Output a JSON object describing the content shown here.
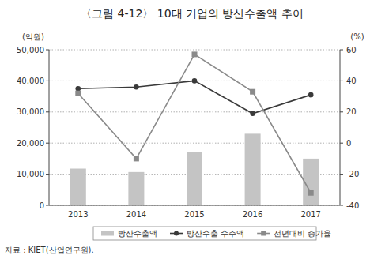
{
  "chart_data": {
    "type": "bar",
    "title": "〈그림 4-12〉 10대 기업의 방산수출액 추이",
    "y_label": "(억원)",
    "y2_label": "(%)",
    "source": "자료 : KIET(산업연구원).",
    "categories": [
      "2013",
      "2014",
      "2015",
      "2016",
      "2017"
    ],
    "series": [
      {
        "name": "방산수출액",
        "type": "bar",
        "color": "#c4c4c4",
        "values": [
          11800,
          10700,
          17000,
          23000,
          15000
        ]
      },
      {
        "name": "방산수출 수주액",
        "type": "line",
        "color": "#3a3a3a",
        "marker": "circle",
        "values": [
          37500,
          38000,
          40000,
          29500,
          35500
        ]
      },
      {
        "name": "전년대비 증가율",
        "type": "line",
        "color": "#8a8a8a",
        "marker": "square",
        "axis": "y2",
        "values": [
          32,
          -10,
          57,
          33,
          -32
        ]
      }
    ],
    "ylim": [
      0,
      50000
    ],
    "yticks": [
      0,
      {
        "value": 10000,
        "label": "10,000"
      },
      {
        "value": 20000,
        "label": "20,000"
      },
      {
        "value": 30000,
        "label": "30,000"
      },
      {
        "value": 40000,
        "label": "40,000"
      },
      {
        "value": 50000,
        "label": "50,000"
      }
    ],
    "y2lim": [
      -40,
      60
    ],
    "y2ticks": [
      -40,
      -20,
      0,
      20,
      40,
      60
    ],
    "grid": true,
    "legend": "bottom"
  }
}
